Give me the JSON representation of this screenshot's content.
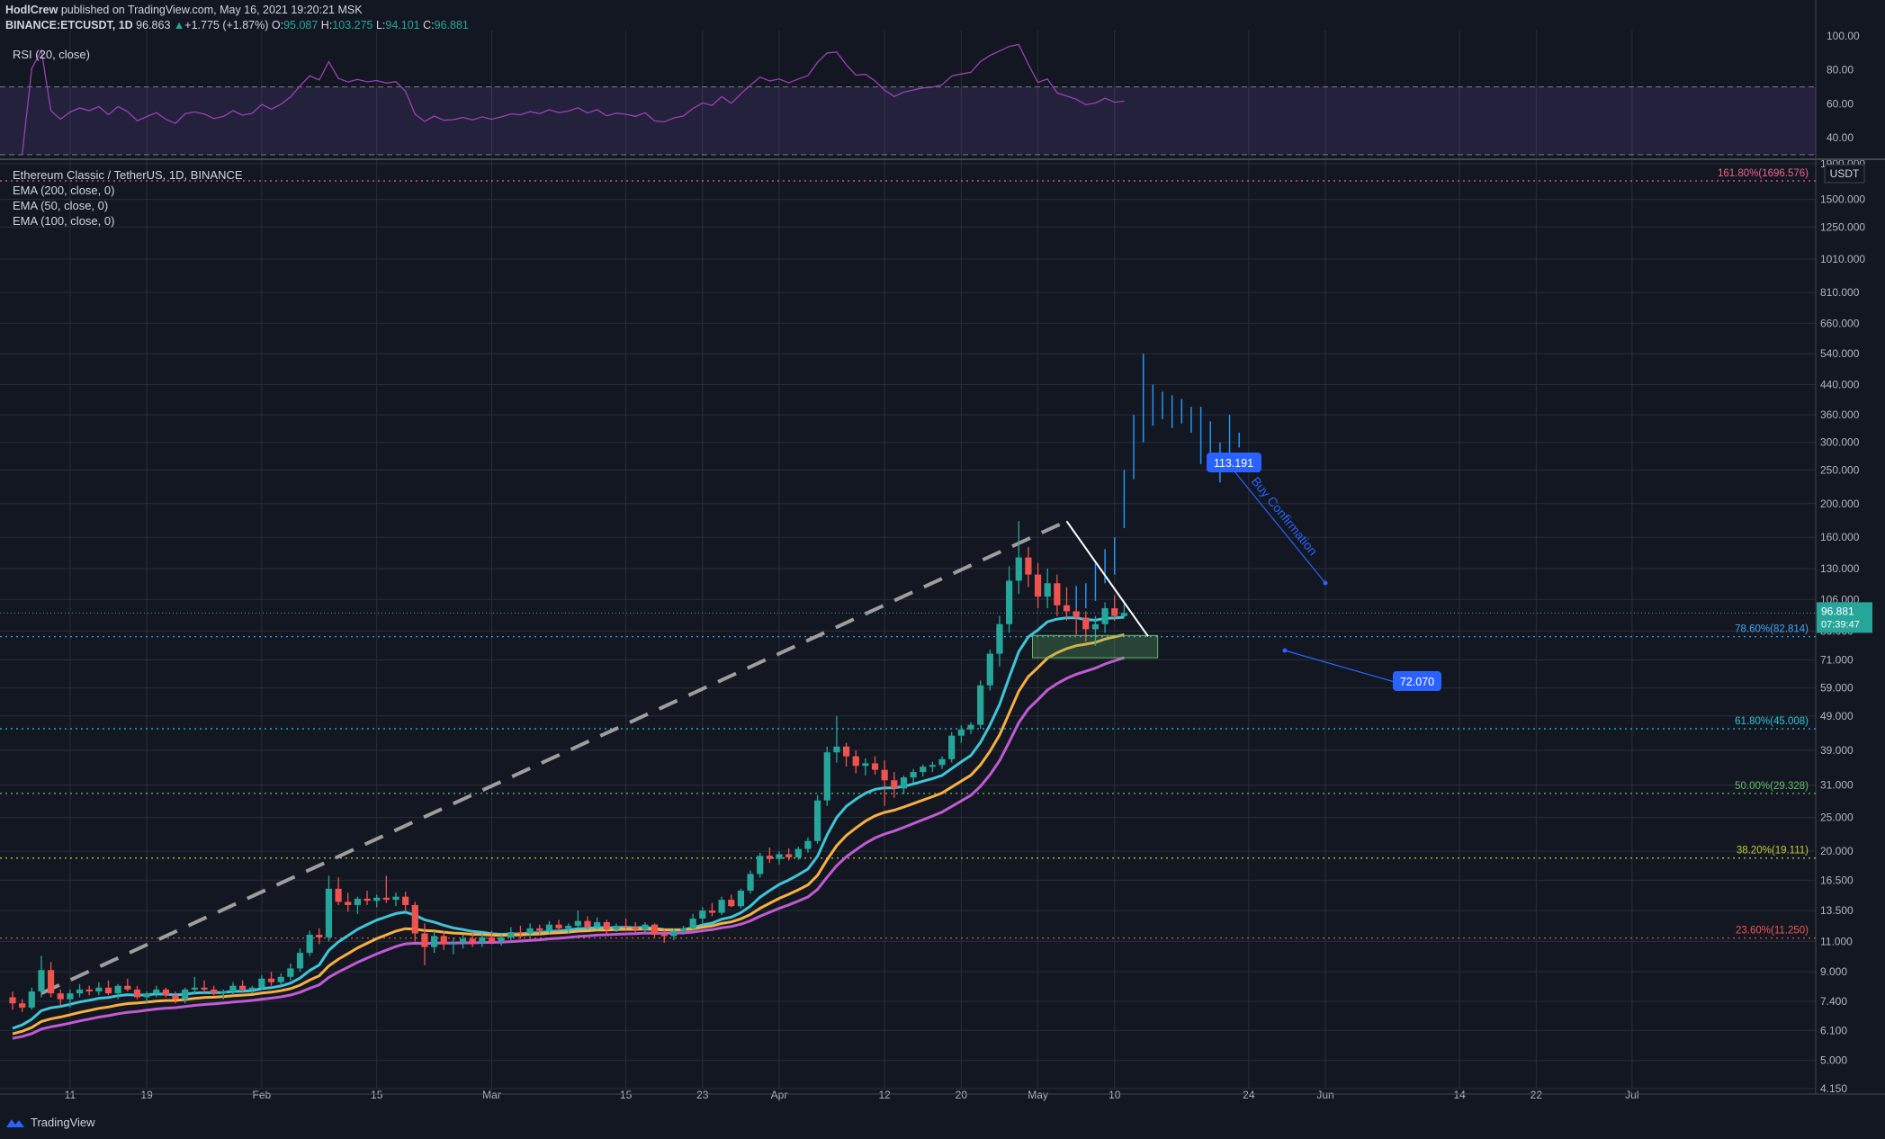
{
  "header": {
    "author": "HodlCrew",
    "published": "published on TradingView.com, May 16, 2021 19:20:21 MSK",
    "symbol": "BINANCE:ETCUSDT, 1D",
    "price": "96.863",
    "change": "+1.775 (+1.87%)",
    "o_label": "O:",
    "o": "95.087",
    "h_label": "H:",
    "h": "103.275",
    "l_label": "L:",
    "l": "94.101",
    "c_label": "C:",
    "c": "96.881"
  },
  "rsi_label": "RSI (20, close)",
  "legend": {
    "title": "Ethereum Classic / TetherUS, 1D, BINANCE",
    "ema200": "EMA (200, close, 0)",
    "ema50": "EMA (50, close, 0)",
    "ema100": "EMA (100, close, 0)"
  },
  "branding": "TradingView",
  "colors": {
    "bg": "#131722",
    "up": "#26a69a",
    "down": "#ef5350",
    "ema_cyan": "#3fc5d8",
    "ema_orange": "#f5b041",
    "ema_purple": "#c05bd1",
    "rsi": "#9b40b5",
    "accent": "#2962ff"
  },
  "chart_data": {
    "type": "candlestick",
    "title": "Ethereum Classic / TetherUS, 1D, BINANCE",
    "y_scale": "log",
    "currency": "USDT",
    "ylim": [
      4.15,
      1900
    ],
    "x_ticks": [
      "11",
      "19",
      "Feb",
      "15",
      "Mar",
      "15",
      "23",
      "Apr",
      "12",
      "20",
      "May",
      "10",
      "24",
      "Jun",
      "14",
      "22",
      "Jul"
    ],
    "y_ticks": [
      "1900.000",
      "1500.000",
      "1250.000",
      "1010.000",
      "810.000",
      "660.000",
      "540.000",
      "440.000",
      "360.000",
      "300.000",
      "250.000",
      "200.000",
      "160.000",
      "130.000",
      "106.000",
      "86.000",
      "71.000",
      "59.000",
      "49.000",
      "39.000",
      "31.000",
      "25.000",
      "20.000",
      "16.500",
      "13.500",
      "11.000",
      "9.000",
      "7.400",
      "6.100",
      "5.000",
      "4.150"
    ],
    "last_price": "96.881",
    "countdown": "07:39:47",
    "fib_levels": [
      {
        "label": "161.80%(1696.576)",
        "value": 1696.576,
        "color": "#f06292"
      },
      {
        "label": "78.60%(82.814)",
        "value": 82.814,
        "color": "#42a5f5"
      },
      {
        "label": "61.80%(45.008)",
        "value": 45.008,
        "color": "#26c6da"
      },
      {
        "label": "50.00%(29.328)",
        "value": 29.328,
        "color": "#66bb6a"
      },
      {
        "label": "38.20%(19.111)",
        "value": 19.111,
        "color": "#c0ca33"
      },
      {
        "label": "23.60%(11.250)",
        "value": 11.25,
        "color": "#ef5350"
      }
    ],
    "annotations": {
      "target_label": "113.191",
      "stop_label": "72.070",
      "text": "Buy Confirmation"
    },
    "candles": [
      [
        7.6,
        7.9,
        7.0,
        7.3
      ],
      [
        7.3,
        7.5,
        6.9,
        7.1
      ],
      [
        7.1,
        8.1,
        7.0,
        7.9
      ],
      [
        7.9,
        10.0,
        7.6,
        9.1
      ],
      [
        9.1,
        9.6,
        7.6,
        7.8
      ],
      [
        7.8,
        8.0,
        7.2,
        7.5
      ],
      [
        7.5,
        8.0,
        7.1,
        7.8
      ],
      [
        7.8,
        8.3,
        7.6,
        8.0
      ],
      [
        8.0,
        8.2,
        7.7,
        7.9
      ],
      [
        7.9,
        8.4,
        7.7,
        8.1
      ],
      [
        8.1,
        8.5,
        7.7,
        7.8
      ],
      [
        7.8,
        8.3,
        7.5,
        8.2
      ],
      [
        8.2,
        8.6,
        7.9,
        8.0
      ],
      [
        8.0,
        8.2,
        7.5,
        7.6
      ],
      [
        7.6,
        7.9,
        7.3,
        7.8
      ],
      [
        7.8,
        8.2,
        7.6,
        8.0
      ],
      [
        8.0,
        8.1,
        7.6,
        7.7
      ],
      [
        7.7,
        7.9,
        7.3,
        7.5
      ],
      [
        7.5,
        8.1,
        7.3,
        8.0
      ],
      [
        8.0,
        8.7,
        7.8,
        8.1
      ],
      [
        8.1,
        8.5,
        7.8,
        8.0
      ],
      [
        8.0,
        8.2,
        7.7,
        7.8
      ],
      [
        7.8,
        8.0,
        7.5,
        7.9
      ],
      [
        7.9,
        8.4,
        7.7,
        8.2
      ],
      [
        8.2,
        8.5,
        7.9,
        8.0
      ],
      [
        8.0,
        8.2,
        7.8,
        8.1
      ],
      [
        8.1,
        8.8,
        8.0,
        8.6
      ],
      [
        8.6,
        9.0,
        8.2,
        8.4
      ],
      [
        8.4,
        8.9,
        8.2,
        8.7
      ],
      [
        8.7,
        9.5,
        8.5,
        9.2
      ],
      [
        9.2,
        10.5,
        9.0,
        10.2
      ],
      [
        10.2,
        11.8,
        10.0,
        11.5
      ],
      [
        11.5,
        12.0,
        10.8,
        11.3
      ],
      [
        11.3,
        17.0,
        11.0,
        15.6
      ],
      [
        15.6,
        16.8,
        14.0,
        14.3
      ],
      [
        14.3,
        15.2,
        13.4,
        14.0
      ],
      [
        14.0,
        14.8,
        13.2,
        14.6
      ],
      [
        14.6,
        15.4,
        14.0,
        14.4
      ],
      [
        14.4,
        15.0,
        13.8,
        14.7
      ],
      [
        14.7,
        17.0,
        14.2,
        14.5
      ],
      [
        14.5,
        15.2,
        13.9,
        14.8
      ],
      [
        14.8,
        15.3,
        13.5,
        14.0
      ],
      [
        14.0,
        14.3,
        11.0,
        11.6
      ],
      [
        11.6,
        12.4,
        9.4,
        10.6
      ],
      [
        10.6,
        11.8,
        10.2,
        11.4
      ],
      [
        11.4,
        11.8,
        10.4,
        10.8
      ],
      [
        10.8,
        11.3,
        10.1,
        10.9
      ],
      [
        10.9,
        11.5,
        10.5,
        11.2
      ],
      [
        11.2,
        11.6,
        10.6,
        10.9
      ],
      [
        10.9,
        11.6,
        10.6,
        11.3
      ],
      [
        11.3,
        11.8,
        10.8,
        11.0
      ],
      [
        11.0,
        11.5,
        10.7,
        11.3
      ],
      [
        11.3,
        12.1,
        11.0,
        11.7
      ],
      [
        11.7,
        12.2,
        11.2,
        11.6
      ],
      [
        11.6,
        12.4,
        11.3,
        12.0
      ],
      [
        12.0,
        12.3,
        11.5,
        11.8
      ],
      [
        11.8,
        12.6,
        11.6,
        12.3
      ],
      [
        12.3,
        12.7,
        11.8,
        12.0
      ],
      [
        12.0,
        12.4,
        11.6,
        12.2
      ],
      [
        12.2,
        13.5,
        12.0,
        12.6
      ],
      [
        12.6,
        13.0,
        11.9,
        12.1
      ],
      [
        12.1,
        12.9,
        11.9,
        12.5
      ],
      [
        12.5,
        12.7,
        11.6,
        11.9
      ],
      [
        11.9,
        12.4,
        11.7,
        12.2
      ],
      [
        12.2,
        12.8,
        11.9,
        12.1
      ],
      [
        12.1,
        12.5,
        11.6,
        11.9
      ],
      [
        11.9,
        12.5,
        11.7,
        12.3
      ],
      [
        12.3,
        12.4,
        11.3,
        11.5
      ],
      [
        11.5,
        11.9,
        10.9,
        11.4
      ],
      [
        11.4,
        12.0,
        11.1,
        11.8
      ],
      [
        11.8,
        12.2,
        11.5,
        12.0
      ],
      [
        12.0,
        13.2,
        11.8,
        12.8
      ],
      [
        12.8,
        13.8,
        12.4,
        13.5
      ],
      [
        13.5,
        14.2,
        13.0,
        13.3
      ],
      [
        13.3,
        14.8,
        13.1,
        14.5
      ],
      [
        14.5,
        15.0,
        13.8,
        13.9
      ],
      [
        13.9,
        15.6,
        13.7,
        15.4
      ],
      [
        15.4,
        17.6,
        15.1,
        17.2
      ],
      [
        17.2,
        19.8,
        16.8,
        19.4
      ],
      [
        19.4,
        20.5,
        18.5,
        19.0
      ],
      [
        19.0,
        20.0,
        18.3,
        19.6
      ],
      [
        19.6,
        20.4,
        18.8,
        19.2
      ],
      [
        19.2,
        20.6,
        18.9,
        20.3
      ],
      [
        20.3,
        21.9,
        19.8,
        21.4
      ],
      [
        21.4,
        29.0,
        21.0,
        28.0
      ],
      [
        28.0,
        40.0,
        27.0,
        38.5
      ],
      [
        38.5,
        49.0,
        36.0,
        40.0
      ],
      [
        40.0,
        41.0,
        35.0,
        37.5
      ],
      [
        37.5,
        39.0,
        33.5,
        35.2
      ],
      [
        35.2,
        37.0,
        33.0,
        35.8
      ],
      [
        35.8,
        37.5,
        33.2,
        34.3
      ],
      [
        34.3,
        36.5,
        27.0,
        32.0
      ],
      [
        32.0,
        33.8,
        28.5,
        30.3
      ],
      [
        30.3,
        33.0,
        29.2,
        32.6
      ],
      [
        32.6,
        34.5,
        31.5,
        33.8
      ],
      [
        33.8,
        35.5,
        32.8,
        35.0
      ],
      [
        35.0,
        36.2,
        33.8,
        35.4
      ],
      [
        35.4,
        37.5,
        34.5,
        36.8
      ],
      [
        36.8,
        44.0,
        36.0,
        43.0
      ],
      [
        43.0,
        46.0,
        41.0,
        44.8
      ],
      [
        44.8,
        47.0,
        43.5,
        46.2
      ],
      [
        46.2,
        62.0,
        45.0,
        60.0
      ],
      [
        60.0,
        76.0,
        58.0,
        74.0
      ],
      [
        74.0,
        95.0,
        68.0,
        90.0
      ],
      [
        90.0,
        132.0,
        85.0,
        120.0
      ],
      [
        120.0,
        178.0,
        110.0,
        140.0
      ],
      [
        140.0,
        150.0,
        115.0,
        125.0
      ],
      [
        125.0,
        135.0,
        100.0,
        108.0
      ],
      [
        108.0,
        130.0,
        100.0,
        118.0
      ],
      [
        118.0,
        125.0,
        95.0,
        102.0
      ],
      [
        102.0,
        115.0,
        92.0,
        98.0
      ],
      [
        98.0,
        108.0,
        84.0,
        94.0
      ],
      [
        94.0,
        98.0,
        80.0,
        87.0
      ],
      [
        87.0,
        95.0,
        78.0,
        90.0
      ],
      [
        90.0,
        104.0,
        85.0,
        100.0
      ],
      [
        100.0,
        109.0,
        92.0,
        95.0
      ],
      [
        95.0,
        103.3,
        94.1,
        96.9
      ]
    ],
    "projection": [
      [
        111,
        100,
        116
      ],
      [
        112,
        100,
        118
      ],
      [
        113,
        105,
        135
      ],
      [
        114,
        118,
        148
      ],
      [
        115,
        125,
        160
      ],
      [
        116,
        170,
        250
      ],
      [
        117,
        235,
        360
      ],
      [
        118,
        300,
        540
      ],
      [
        119,
        335,
        440
      ],
      [
        120,
        350,
        420
      ],
      [
        121,
        330,
        410
      ],
      [
        122,
        340,
        400
      ],
      [
        123,
        320,
        380
      ],
      [
        124,
        260,
        380
      ],
      [
        125,
        250,
        345
      ],
      [
        126,
        230,
        300
      ],
      [
        127,
        280,
        360
      ],
      [
        128,
        290,
        320
      ]
    ],
    "series": [
      {
        "name": "EMA (200, close, 0)",
        "color": "#3fc5d8"
      },
      {
        "name": "EMA (50, close, 0)",
        "color": "#f5b041"
      },
      {
        "name": "EMA (100, close, 0)",
        "color": "#c05bd1"
      }
    ],
    "rsi": {
      "label": "RSI (20, close)",
      "ticks": [
        "100.00",
        "80.00",
        "60.00",
        "40.00"
      ],
      "upper_band": 70,
      "lower_band": 30
    }
  }
}
